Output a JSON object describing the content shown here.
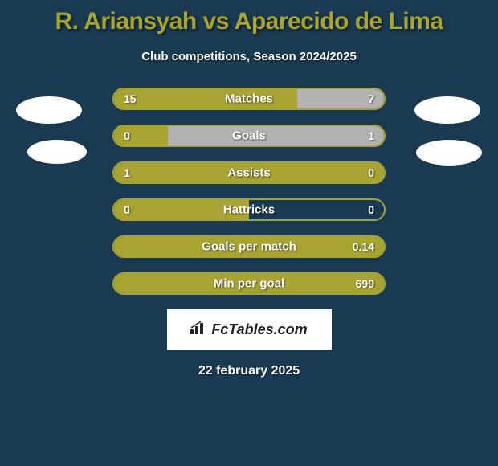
{
  "title": "R. Ariansyah vs Aparecido de Lima",
  "subtitle": "Club competitions, Season 2024/2025",
  "colors": {
    "background": "#1a3a52",
    "accent": "#a8a432",
    "bar_left": "#a8a432",
    "bar_right": "#b2b2b2",
    "text": "#ffffff",
    "avatar": "#ffffff"
  },
  "stats": [
    {
      "label": "Matches",
      "left_value": "15",
      "right_value": "7",
      "left_pct": 68,
      "right_pct": 32
    },
    {
      "label": "Goals",
      "left_value": "0",
      "right_value": "1",
      "left_pct": 20,
      "right_pct": 80
    },
    {
      "label": "Assists",
      "left_value": "1",
      "right_value": "0",
      "left_pct": 100,
      "right_pct": 0
    },
    {
      "label": "Hattricks",
      "left_value": "0",
      "right_value": "0",
      "left_pct": 50,
      "right_pct": 0
    },
    {
      "label": "Goals per match",
      "left_value": "",
      "right_value": "0.14",
      "left_pct": 100,
      "right_pct": 0
    },
    {
      "label": "Min per goal",
      "left_value": "",
      "right_value": "699",
      "left_pct": 100,
      "right_pct": 0
    }
  ],
  "footer": {
    "logo_text": "FcTables.com",
    "date": "22 february 2025"
  },
  "bar_container_width": 340,
  "title_fontsize": 30,
  "subtitle_fontsize": 15,
  "label_fontsize": 15,
  "value_fontsize": 14,
  "date_fontsize": 16
}
